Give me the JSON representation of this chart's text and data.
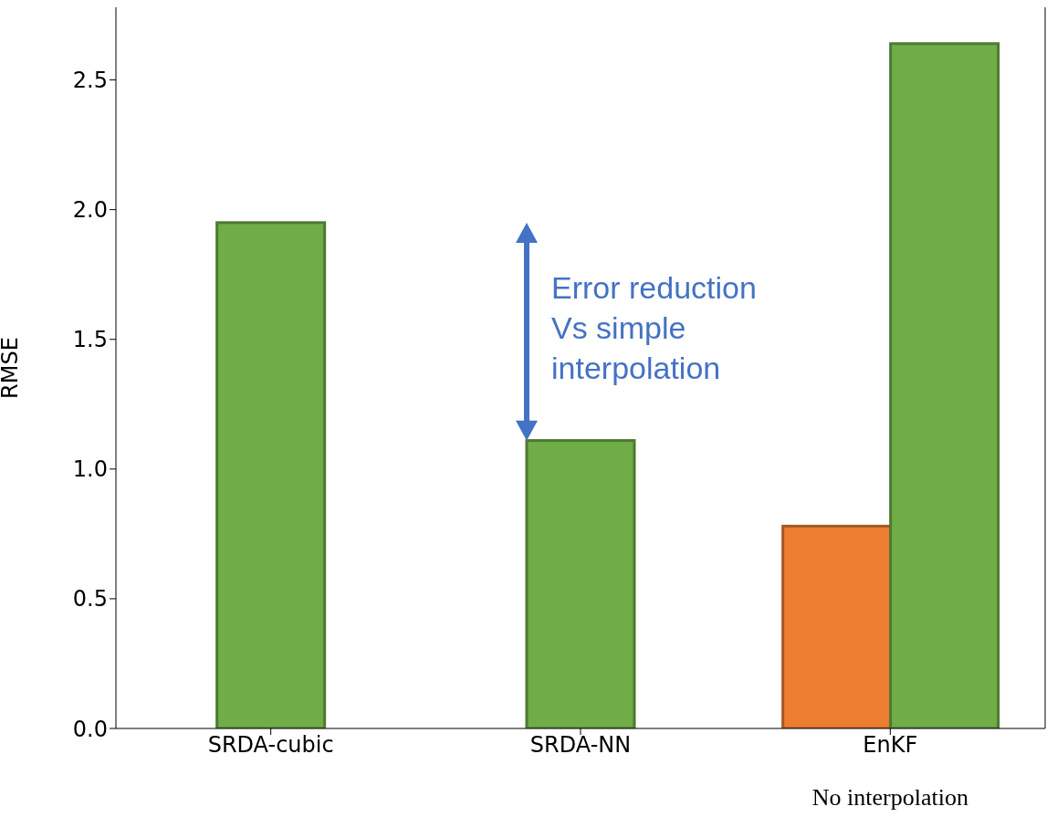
{
  "chart_data": {
    "type": "bar",
    "categories": [
      "SRDA-cubic",
      "SRDA-NN",
      "EnKF"
    ],
    "ylabel": "RMSE",
    "series": [
      {
        "color": "#ed7d31",
        "values": [
          null,
          null,
          0.78
        ]
      },
      {
        "color": "#70ad47",
        "values": [
          1.95,
          1.11,
          2.64
        ]
      }
    ],
    "ylim": [
      0,
      2.78
    ],
    "yticks": [
      {
        "value": 0,
        "label": "0.0"
      },
      {
        "value": 0.5,
        "label": "0.5"
      },
      {
        "value": 1,
        "label": "1.0"
      },
      {
        "value": 1.5,
        "label": "1.5"
      },
      {
        "value": 2,
        "label": "2.0"
      },
      {
        "value": 2.5,
        "label": "2.5"
      }
    ],
    "grid": false,
    "legend": false,
    "annotations": [
      "Error reduction Vs simple interpolation",
      "No interpolation"
    ]
  }
}
